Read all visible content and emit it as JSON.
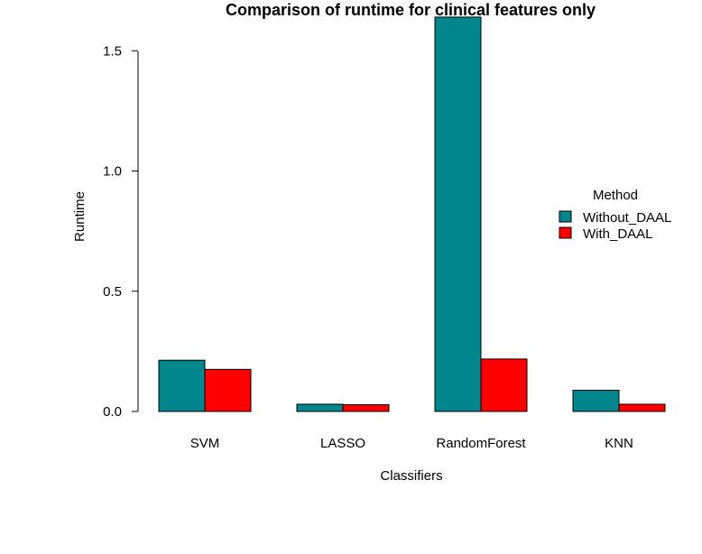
{
  "chart_data": {
    "type": "bar",
    "title": "Comparison of runtime for clinical features only",
    "xlabel": "Classifiers",
    "ylabel": "Runtime",
    "categories": [
      "SVM",
      "LASSO",
      "RandomForest",
      "KNN"
    ],
    "series": [
      {
        "name": "Without_DAAL",
        "color": "#00868B",
        "values": [
          0.213,
          0.03,
          1.64,
          0.088
        ]
      },
      {
        "name": "With_DAAL",
        "color": "#FF0000",
        "values": [
          0.175,
          0.028,
          0.218,
          0.03
        ]
      }
    ],
    "ylim": [
      0,
      1.64
    ],
    "yticks": [
      0.0,
      0.5,
      1.0,
      1.5
    ],
    "ytick_labels": [
      "0.0",
      "0.5",
      "1.0",
      "1.5"
    ],
    "legend": {
      "title": "Method",
      "position": "right"
    },
    "grid": false
  }
}
